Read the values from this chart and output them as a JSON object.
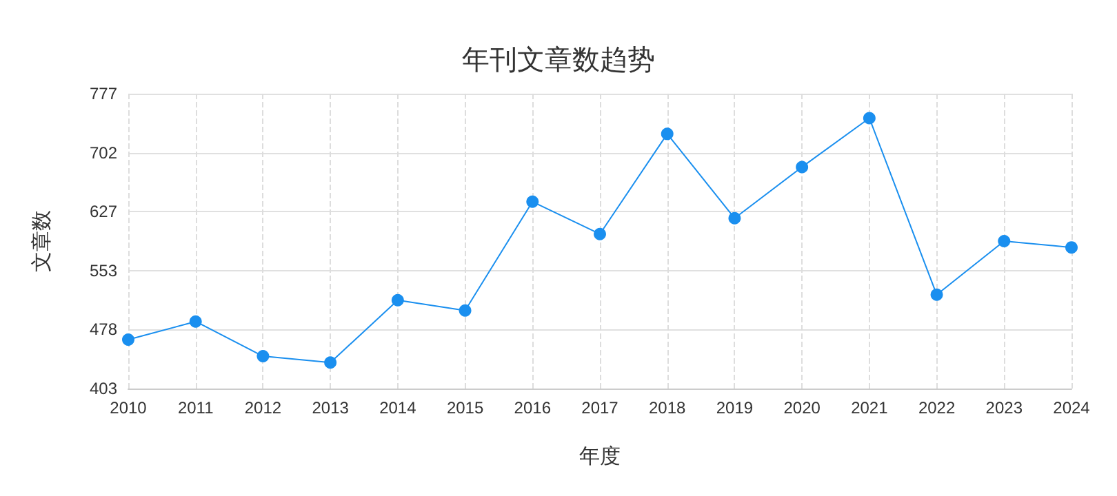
{
  "chart_data": {
    "type": "line",
    "title": "年刊文章数趋势",
    "xlabel": "年度",
    "ylabel": "文章数",
    "categories": [
      "2010",
      "2011",
      "2012",
      "2013",
      "2014",
      "2015",
      "2016",
      "2017",
      "2018",
      "2019",
      "2020",
      "2021",
      "2022",
      "2023",
      "2024"
    ],
    "series": [
      {
        "color": "#1a8fef",
        "values": [
          465,
          488,
          444,
          436,
          515,
          502,
          640,
          599,
          726,
          619,
          684,
          746,
          522,
          590,
          582
        ]
      }
    ],
    "ylim": [
      403,
      777
    ],
    "yticks": [
      403,
      {
        "value": 477.8,
        "label": "478"
      },
      {
        "value": 552.6,
        "label": "553"
      },
      {
        "value": 627.4,
        "label": "627"
      },
      {
        "value": 702.2,
        "label": "702"
      },
      777
    ],
    "grid": true,
    "marker": "circle",
    "line_style": "solid"
  }
}
